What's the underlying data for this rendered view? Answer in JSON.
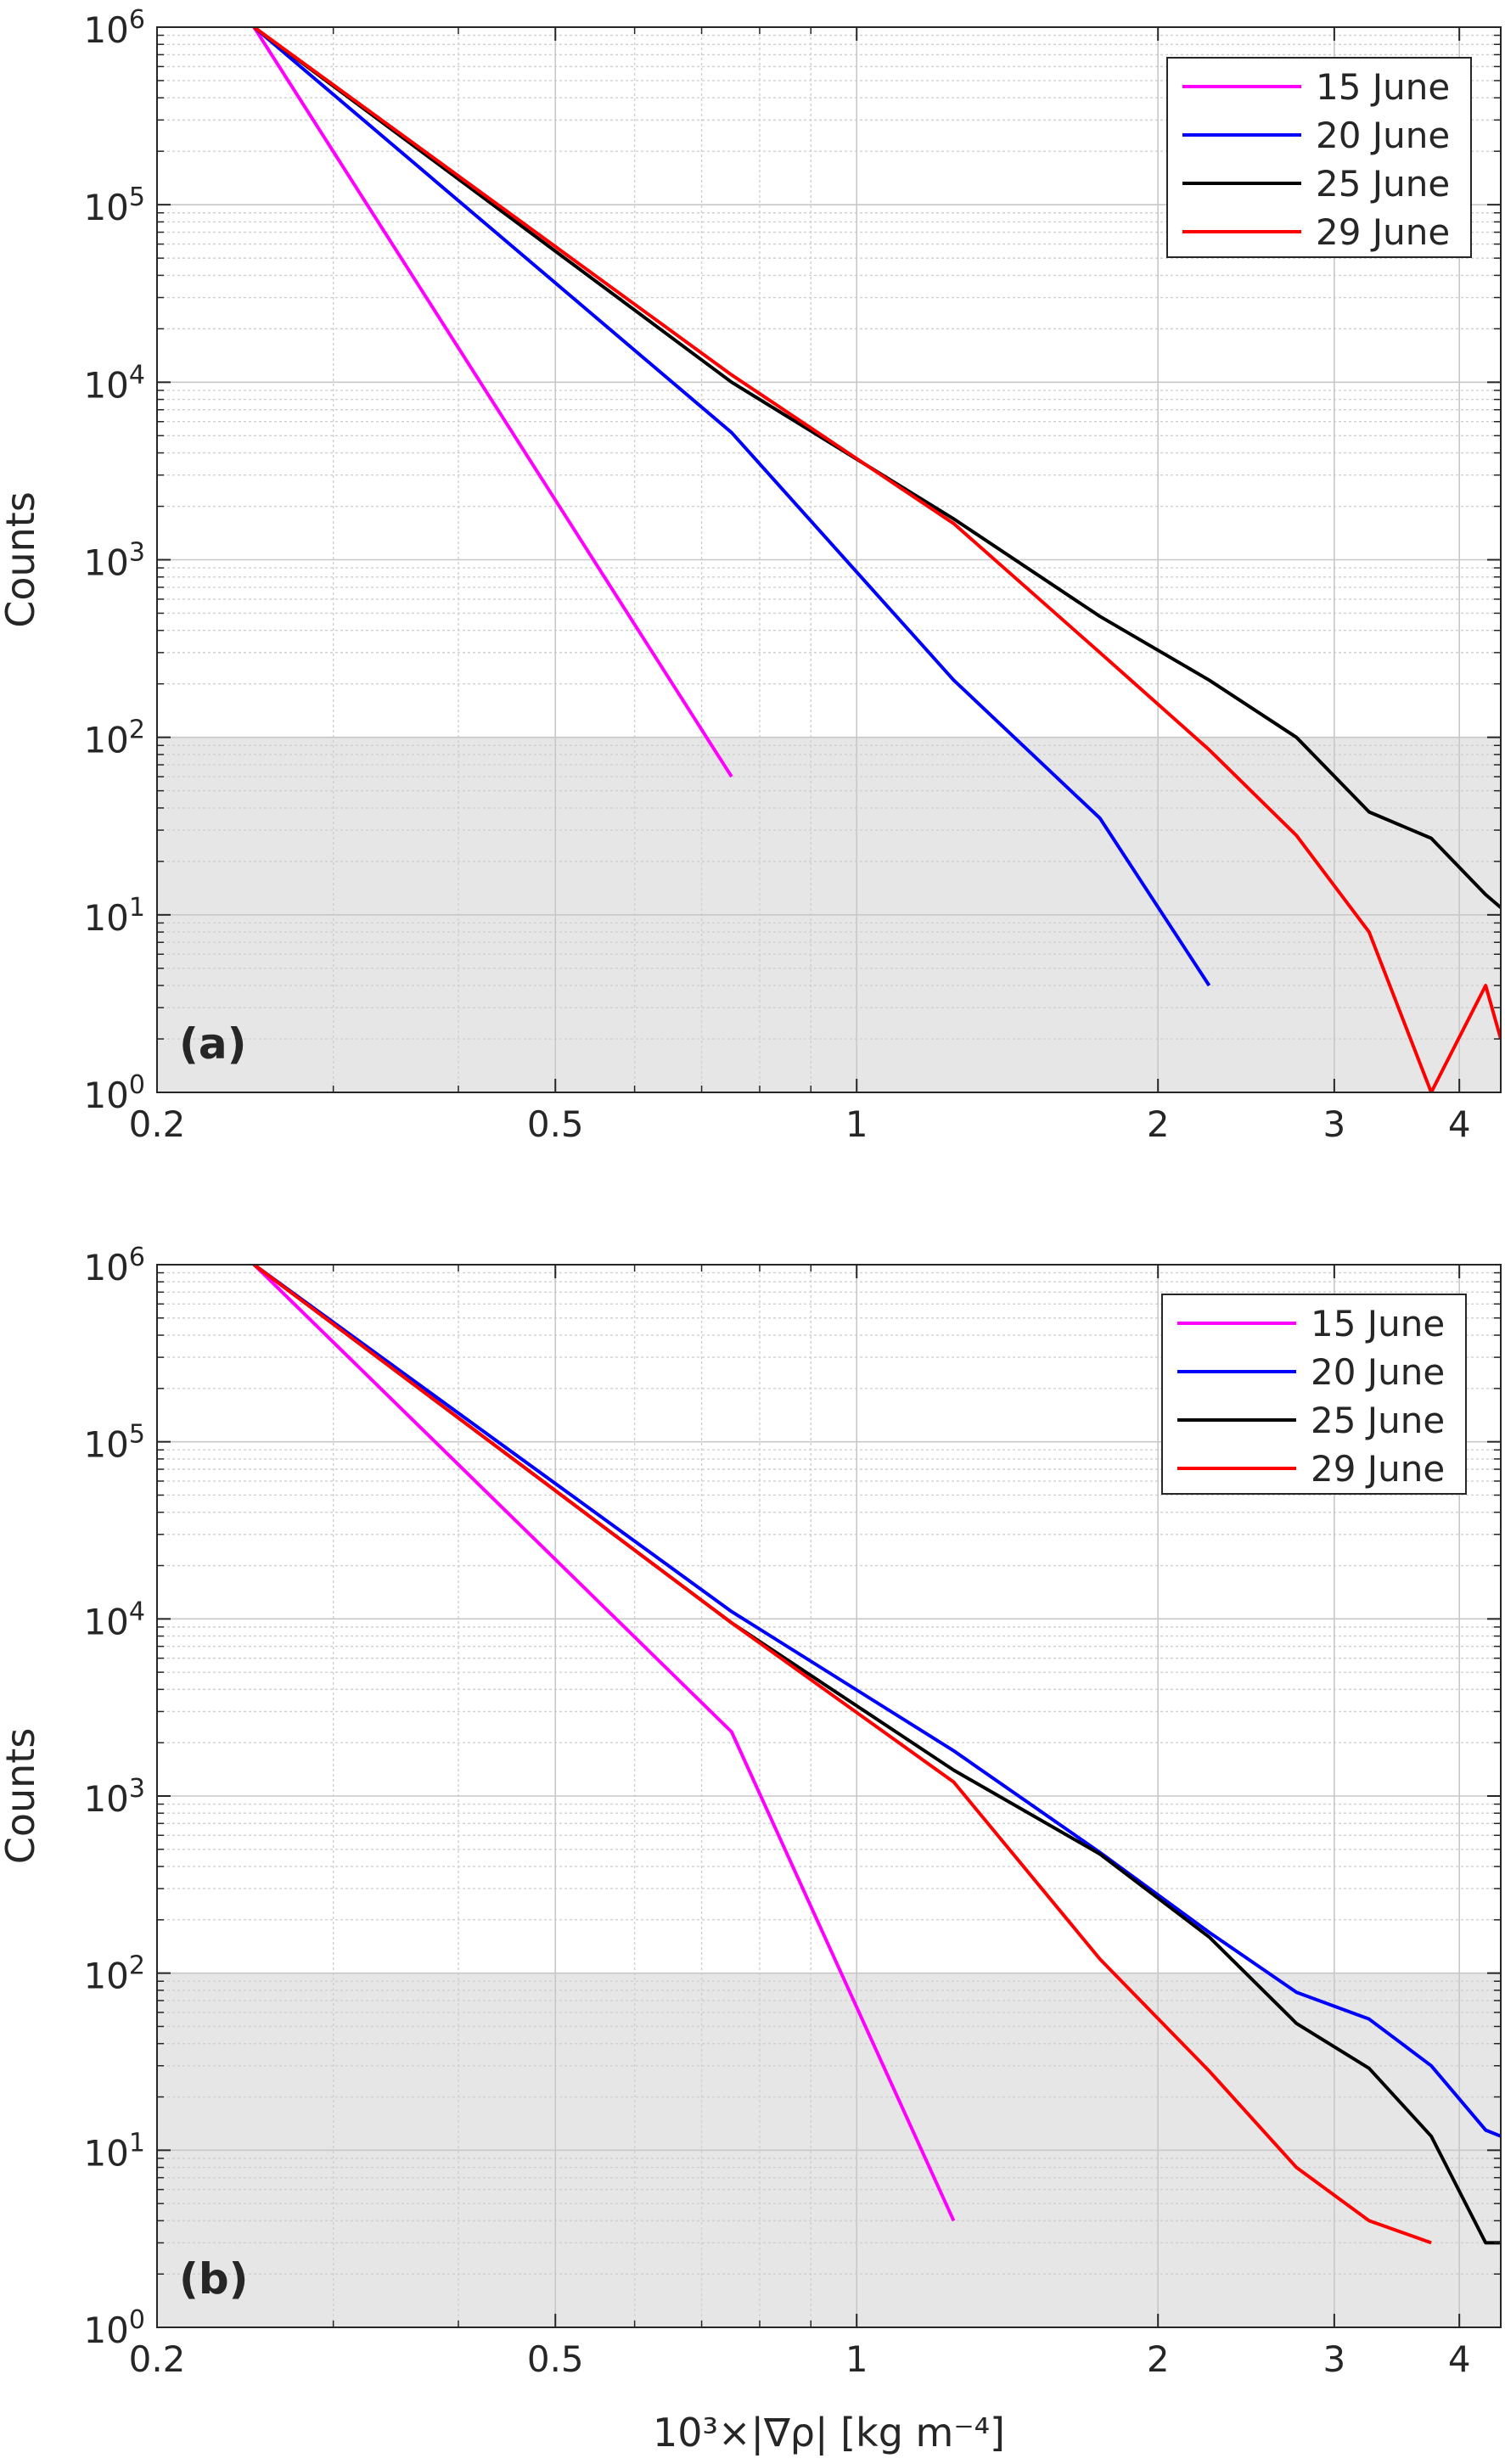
{
  "chart_data": [
    {
      "type": "line",
      "panel_label": "(a)",
      "xscale": "log",
      "yscale": "log",
      "xlim": [
        0.2,
        4.4
      ],
      "ylim": [
        1,
        1000000
      ],
      "xticks": [
        0.2,
        0.5,
        1,
        2,
        3,
        4
      ],
      "yticks": [
        1,
        10,
        100,
        1000,
        10000,
        100000,
        1000000
      ],
      "xlabel": "",
      "ylabel": "Counts",
      "grid": true,
      "shaded_region": {
        "y_from": 1,
        "y_to": 100,
        "color": "#e6e6e6"
      },
      "legend": {
        "placement": "top-right"
      },
      "series": [
        {
          "name": "15 June",
          "color": "#ff00ff",
          "x": [
            0.25,
            0.75
          ],
          "y": [
            1000000,
            60
          ]
        },
        {
          "name": "20 June",
          "color": "#0000ff",
          "x": [
            0.25,
            0.75,
            1.25,
            1.75,
            2.25
          ],
          "y": [
            1000000,
            5200,
            210,
            35,
            4
          ]
        },
        {
          "name": "25 June",
          "color": "#000000",
          "x": [
            0.25,
            0.75,
            1.25,
            1.75,
            2.25,
            2.75,
            3.25,
            3.75,
            4.25,
            4.4
          ],
          "y": [
            1000000,
            10000,
            1700,
            480,
            210,
            100,
            38,
            27,
            13,
            11
          ]
        },
        {
          "name": "29 June",
          "color": "#ff0000",
          "x": [
            0.25,
            0.75,
            1.25,
            1.75,
            2.25,
            2.75,
            3.25,
            3.75,
            4.25,
            4.4
          ],
          "y": [
            1000000,
            11000,
            1600,
            300,
            85,
            28,
            8,
            1,
            4,
            2
          ]
        }
      ]
    },
    {
      "type": "line",
      "panel_label": "(b)",
      "xscale": "log",
      "yscale": "log",
      "xlim": [
        0.2,
        4.4
      ],
      "ylim": [
        1,
        1000000
      ],
      "xticks": [
        0.2,
        0.5,
        1,
        2,
        3,
        4
      ],
      "yticks": [
        1,
        10,
        100,
        1000,
        10000,
        100000,
        1000000
      ],
      "xlabel": "10³×|∇ρ| [kg m⁻⁴]",
      "ylabel": "Counts",
      "grid": true,
      "shaded_region": {
        "y_from": 1,
        "y_to": 100,
        "color": "#e6e6e6"
      },
      "legend": {
        "placement": "top-right"
      },
      "series": [
        {
          "name": "15 June",
          "color": "#ff00ff",
          "x": [
            0.25,
            0.75,
            1.25
          ],
          "y": [
            1000000,
            2300,
            4
          ]
        },
        {
          "name": "20 June",
          "color": "#0000ff",
          "x": [
            0.25,
            0.75,
            1.25,
            1.75,
            2.25,
            2.75,
            3.25,
            3.75,
            4.25,
            4.4
          ],
          "y": [
            1000000,
            11000,
            1800,
            480,
            170,
            78,
            55,
            30,
            13,
            12
          ]
        },
        {
          "name": "25 June",
          "color": "#000000",
          "x": [
            0.25,
            0.75,
            1.25,
            1.75,
            2.25,
            2.75,
            3.25,
            3.75,
            4.25,
            4.4
          ],
          "y": [
            1000000,
            9500,
            1400,
            470,
            160,
            52,
            29,
            12,
            3,
            3
          ]
        },
        {
          "name": "29 June",
          "color": "#ff0000",
          "x": [
            0.25,
            0.75,
            1.25,
            1.75,
            2.25,
            2.75,
            3.25,
            3.75
          ],
          "y": [
            1000000,
            9500,
            1200,
            120,
            28,
            8,
            4,
            3
          ]
        }
      ]
    }
  ]
}
